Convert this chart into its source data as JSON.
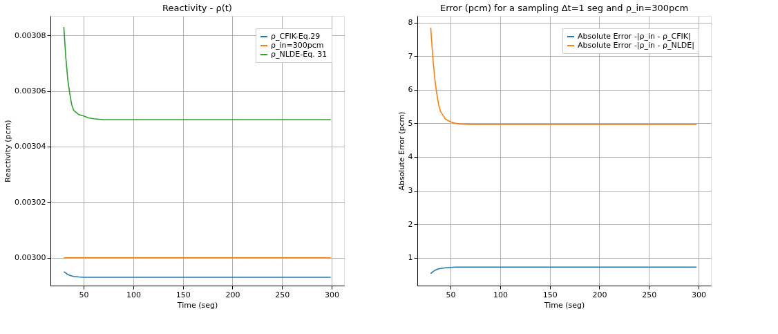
{
  "chart_data": [
    {
      "type": "line",
      "title": "Reactivity - ρ(t)",
      "xlabel": "Time (seg)",
      "ylabel": "Reactivity (pcm)",
      "x": [
        30,
        32,
        34,
        36,
        38,
        40,
        45,
        50,
        55,
        60,
        70,
        80,
        100,
        150,
        200,
        250,
        299
      ],
      "series": [
        {
          "name": "ρ_CFIK-Eq.29",
          "color": "#1f77b4",
          "values": [
            0.002995,
            0.0029945,
            0.002994,
            0.0029937,
            0.0029935,
            0.0029933,
            0.0029931,
            0.002993,
            0.002993,
            0.002993,
            0.002993,
            0.002993,
            0.002993,
            0.002993,
            0.002993,
            0.002993,
            0.002993
          ]
        },
        {
          "name": "ρ_in=300pcm",
          "color": "#ff7f0e",
          "values": [
            0.003,
            0.003,
            0.003,
            0.003,
            0.003,
            0.003,
            0.003,
            0.003,
            0.003,
            0.003,
            0.003,
            0.003,
            0.003,
            0.003,
            0.003,
            0.003,
            0.003
          ]
        },
        {
          "name": "ρ_NLDE-Eq. 31",
          "color": "#2ca02c",
          "values": [
            0.003083,
            0.003072,
            0.003064,
            0.003059,
            0.003055,
            0.003053,
            0.0030515,
            0.003051,
            0.0030503,
            0.00305,
            0.0030497,
            0.0030497,
            0.0030497,
            0.0030497,
            0.0030497,
            0.0030497,
            0.0030497
          ]
        }
      ],
      "xlim": [
        16.5,
        312.5
      ],
      "xticks": [
        50,
        100,
        150,
        200,
        250,
        300
      ],
      "ylim": [
        0.00299,
        0.003087
      ],
      "yticks": [
        {
          "value": 0.003,
          "label": "0.00300"
        },
        {
          "value": 0.00302,
          "label": "0.00302"
        },
        {
          "value": 0.00304,
          "label": "0.00304"
        },
        {
          "value": 0.00306,
          "label": "0.00306"
        },
        {
          "value": 0.00308,
          "label": "0.00308"
        }
      ],
      "grid": true,
      "legend": "top right",
      "marker": "none",
      "line_style": "solid"
    },
    {
      "type": "line",
      "title": "Error (pcm) for a sampling Δt=1 seg and ρ_in=300pcm",
      "xlabel": "Time (seg)",
      "ylabel": "Absolute Error (pcm)",
      "x": [
        30,
        32,
        34,
        36,
        38,
        40,
        45,
        50,
        55,
        60,
        70,
        80,
        100,
        150,
        200,
        250,
        298
      ],
      "series": [
        {
          "name": "Absolute Error -|ρ_in - ρ_CFIK|",
          "color": "#1f77b4",
          "values": [
            0.53,
            0.58,
            0.62,
            0.65,
            0.67,
            0.68,
            0.7,
            0.71,
            0.72,
            0.72,
            0.72,
            0.72,
            0.72,
            0.72,
            0.72,
            0.72,
            0.72
          ]
        },
        {
          "name": "Absolute Error -|ρ_in - ρ_NLDE|",
          "color": "#ff7f0e",
          "values": [
            7.85,
            7.0,
            6.35,
            5.9,
            5.55,
            5.35,
            5.12,
            5.05,
            5.0,
            4.98,
            4.97,
            4.97,
            4.97,
            4.97,
            4.97,
            4.97,
            4.97
          ]
        }
      ],
      "xlim": [
        16.5,
        312.5
      ],
      "xticks": [
        50,
        100,
        150,
        200,
        250,
        300
      ],
      "ylim": [
        0.17,
        8.2
      ],
      "yticks": [
        1,
        2,
        3,
        4,
        5,
        6,
        7,
        8
      ],
      "grid": true,
      "legend": "top right",
      "marker": "none",
      "line_style": "solid"
    }
  ]
}
